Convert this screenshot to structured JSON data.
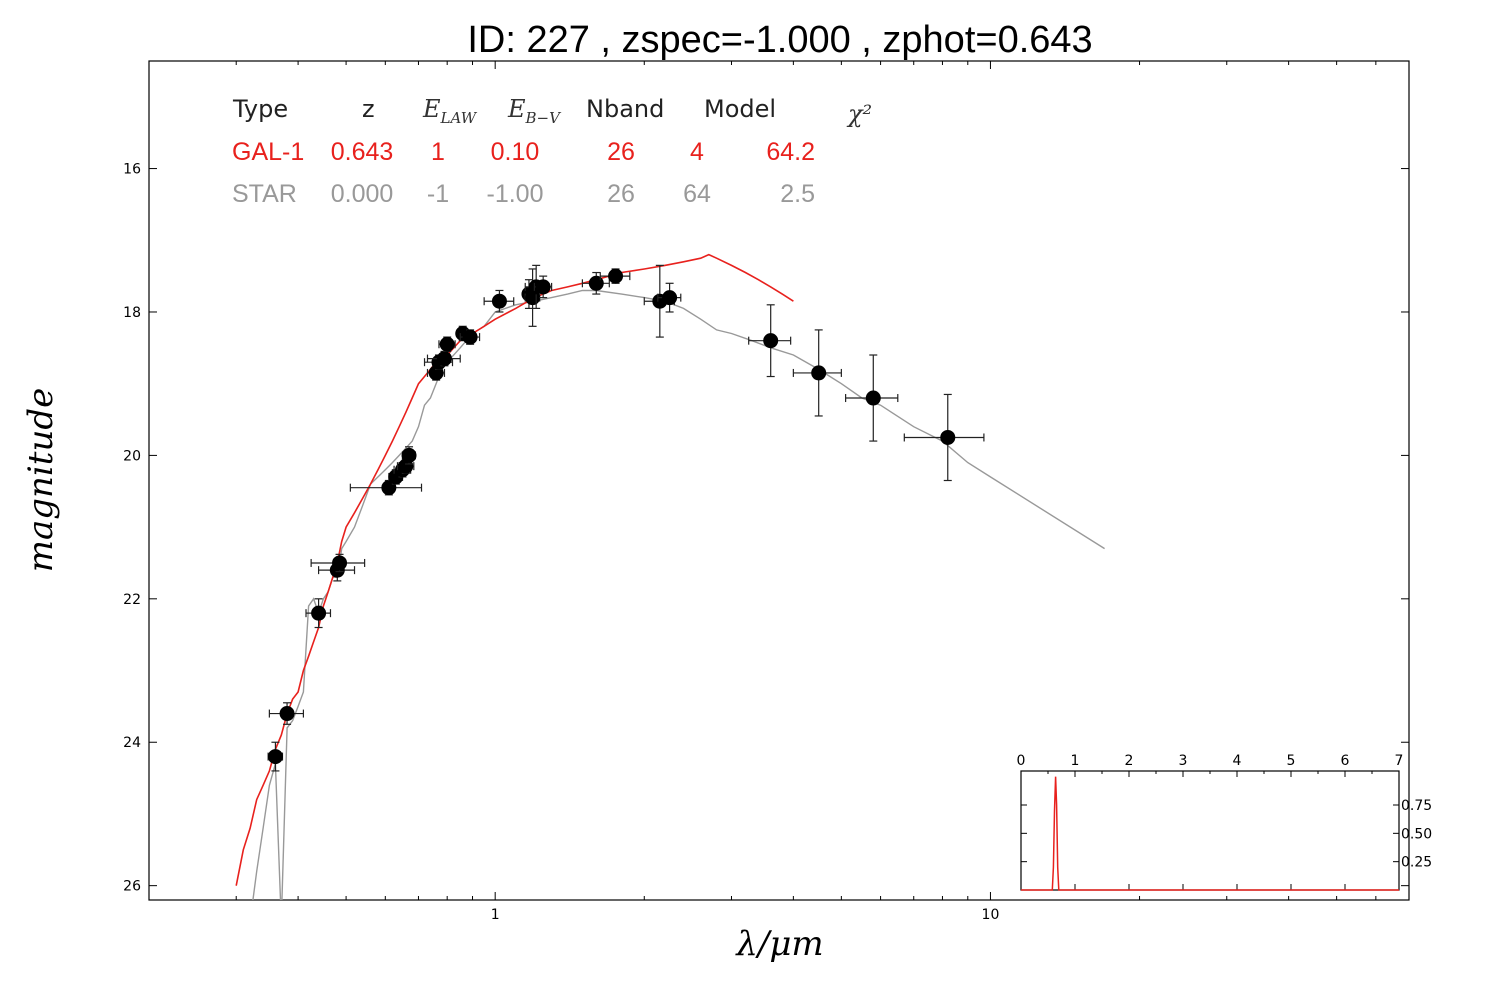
{
  "chart_data": {
    "type": "scatter",
    "title": "ID:  227   , zspec=-1.000 , zphot=0.643",
    "xlabel": "λ/μm",
    "ylabel": "magnitude",
    "xscale": "log",
    "xlim": [
      0.2,
      70
    ],
    "ylim": [
      26.2,
      14.5
    ],
    "x_ticks": [
      {
        "value": 1,
        "label": "1"
      },
      {
        "value": 10,
        "label": "10"
      }
    ],
    "y_ticks": [
      16,
      18,
      20,
      22,
      24,
      26
    ],
    "grid": false,
    "legend_table": {
      "header": [
        "Type",
        "z",
        "E_LAW",
        "E_B−V",
        "Nband",
        "Model",
        "χ²"
      ],
      "rows": [
        {
          "color": "#e8211d",
          "cells": [
            "GAL-1",
            "0.643",
            "1",
            "0.10",
            "26",
            "4",
            "64.2"
          ]
        },
        {
          "color": "#999999",
          "cells": [
            "STAR",
            "0.000",
            "-1",
            "-1.00",
            "26",
            "64",
            "2.5"
          ]
        }
      ]
    },
    "photometry": [
      {
        "x": 0.36,
        "y": 24.2,
        "xerr": 0.012,
        "yerr": 0.2
      },
      {
        "x": 0.38,
        "y": 23.6,
        "xerr": 0.03,
        "yerr": 0.15
      },
      {
        "x": 0.44,
        "y": 22.2,
        "xerr": 0.025,
        "yerr": 0.2
      },
      {
        "x": 0.48,
        "y": 21.6,
        "xerr": 0.04,
        "yerr": 0.15
      },
      {
        "x": 0.485,
        "y": 21.5,
        "xerr": 0.06,
        "yerr": 0.12
      },
      {
        "x": 0.61,
        "y": 20.45,
        "xerr": 0.1,
        "yerr": 0.1
      },
      {
        "x": 0.63,
        "y": 20.3,
        "xerr": 0.02,
        "yerr": 0.1
      },
      {
        "x": 0.65,
        "y": 20.2,
        "xerr": 0.025,
        "yerr": 0.1
      },
      {
        "x": 0.66,
        "y": 20.15,
        "xerr": 0.025,
        "yerr": 0.1
      },
      {
        "x": 0.67,
        "y": 20.0,
        "xerr": 0.02,
        "yerr": 0.12
      },
      {
        "x": 0.76,
        "y": 18.85,
        "xerr": 0.03,
        "yerr": 0.1
      },
      {
        "x": 0.77,
        "y": 18.7,
        "xerr": 0.05,
        "yerr": 0.1
      },
      {
        "x": 0.79,
        "y": 18.65,
        "xerr": 0.06,
        "yerr": 0.1
      },
      {
        "x": 0.8,
        "y": 18.45,
        "xerr": 0.03,
        "yerr": 0.1
      },
      {
        "x": 0.86,
        "y": 18.3,
        "xerr": 0.02,
        "yerr": 0.1
      },
      {
        "x": 0.89,
        "y": 18.35,
        "xerr": 0.04,
        "yerr": 0.1
      },
      {
        "x": 1.02,
        "y": 17.85,
        "xerr": 0.07,
        "yerr": 0.15
      },
      {
        "x": 1.17,
        "y": 17.75,
        "xerr": 0.03,
        "yerr": 0.2
      },
      {
        "x": 1.19,
        "y": 17.8,
        "xerr": 0.04,
        "yerr": 0.4
      },
      {
        "x": 1.21,
        "y": 17.65,
        "xerr": 0.06,
        "yerr": 0.3
      },
      {
        "x": 1.25,
        "y": 17.65,
        "xerr": 0.05,
        "yerr": 0.15
      },
      {
        "x": 1.6,
        "y": 17.6,
        "xerr": 0.1,
        "yerr": 0.15
      },
      {
        "x": 1.75,
        "y": 17.5,
        "xerr": 0.12,
        "yerr": 0.1
      },
      {
        "x": 2.15,
        "y": 17.85,
        "xerr": 0.15,
        "yerr": 0.5
      },
      {
        "x": 2.25,
        "y": 17.8,
        "xerr": 0.12,
        "yerr": 0.2
      },
      {
        "x": 3.6,
        "y": 18.4,
        "xerr": 0.35,
        "yerr": 0.5
      },
      {
        "x": 4.5,
        "y": 18.85,
        "xerr": 0.5,
        "yerr": 0.6
      },
      {
        "x": 5.8,
        "y": 19.2,
        "xerr": 0.7,
        "yerr": 0.6
      },
      {
        "x": 8.2,
        "y": 19.75,
        "xerr": 1.5,
        "yerr": 0.6
      }
    ],
    "galaxy_model": {
      "color": "#e8211d",
      "x": [
        0.3,
        0.31,
        0.32,
        0.33,
        0.34,
        0.35,
        0.36,
        0.37,
        0.38,
        0.39,
        0.4,
        0.41,
        0.42,
        0.43,
        0.44,
        0.45,
        0.46,
        0.47,
        0.48,
        0.49,
        0.5,
        0.52,
        0.54,
        0.56,
        0.58,
        0.6,
        0.62,
        0.64,
        0.66,
        0.68,
        0.7,
        0.72,
        0.74,
        0.76,
        0.78,
        0.8,
        0.85,
        0.9,
        0.95,
        1.0,
        1.1,
        1.2,
        1.3,
        1.4,
        1.5,
        1.6,
        1.8,
        2.0,
        2.2,
        2.4,
        2.6,
        2.7,
        2.8,
        3.0,
        3.2,
        3.4,
        3.6,
        3.8,
        4.0
      ],
      "y": [
        26.0,
        25.5,
        25.2,
        24.8,
        24.6,
        24.4,
        24.1,
        23.9,
        23.6,
        23.4,
        23.3,
        23.0,
        22.8,
        22.6,
        22.4,
        22.1,
        21.9,
        21.7,
        21.5,
        21.2,
        21.0,
        20.8,
        20.6,
        20.4,
        20.2,
        20.0,
        19.8,
        19.6,
        19.4,
        19.2,
        19.0,
        18.9,
        18.8,
        18.7,
        18.65,
        18.6,
        18.4,
        18.3,
        18.2,
        18.1,
        17.95,
        17.8,
        17.7,
        17.65,
        17.6,
        17.55,
        17.45,
        17.4,
        17.35,
        17.3,
        17.25,
        17.2,
        17.25,
        17.35,
        17.45,
        17.55,
        17.65,
        17.75,
        17.85
      ]
    },
    "star_model": {
      "color": "#999999",
      "x": [
        0.32,
        0.33,
        0.34,
        0.35,
        0.36,
        0.37,
        0.38,
        0.39,
        0.4,
        0.41,
        0.42,
        0.43,
        0.44,
        0.45,
        0.46,
        0.47,
        0.48,
        0.49,
        0.5,
        0.52,
        0.54,
        0.56,
        0.58,
        0.6,
        0.62,
        0.64,
        0.66,
        0.68,
        0.7,
        0.72,
        0.74,
        0.76,
        0.78,
        0.8,
        0.85,
        0.9,
        0.95,
        1.0,
        1.1,
        1.2,
        1.3,
        1.4,
        1.5,
        1.6,
        1.8,
        2.0,
        2.2,
        2.4,
        2.6,
        2.8,
        3.0,
        3.3,
        3.6,
        4.0,
        4.5,
        5.0,
        5.5,
        6.0,
        7.0,
        8.0,
        9.0,
        10.0,
        17.0
      ],
      "y": [
        26.5,
        25.8,
        25.2,
        24.6,
        24.3,
        26.5,
        23.8,
        23.7,
        23.5,
        23.3,
        22.1,
        22.0,
        22.2,
        22.0,
        21.9,
        21.7,
        21.7,
        21.3,
        21.2,
        21.0,
        20.7,
        20.4,
        20.3,
        20.2,
        20.1,
        20.0,
        19.9,
        19.8,
        19.6,
        19.3,
        19.2,
        19.0,
        18.8,
        18.7,
        18.5,
        18.3,
        18.2,
        18.0,
        17.9,
        17.85,
        17.8,
        17.75,
        17.7,
        17.7,
        17.75,
        17.8,
        17.85,
        17.95,
        18.1,
        18.25,
        18.3,
        18.4,
        18.5,
        18.6,
        18.8,
        19.0,
        19.2,
        19.3,
        19.6,
        19.8,
        20.1,
        20.3,
        21.3
      ]
    },
    "inset": {
      "type": "line",
      "xlim": [
        0,
        7
      ],
      "ylim": [
        0,
        1.05
      ],
      "x_ticks": [
        "0",
        "1",
        "2",
        "3",
        "4",
        "5",
        "6",
        "7"
      ],
      "y_ticks": [
        {
          "value": 0.25,
          "label": "0.25"
        },
        {
          "value": 0.5,
          "label": "0.50"
        },
        {
          "value": 0.75,
          "label": "0.75"
        }
      ],
      "color": "#e8211d",
      "x": [
        0.0,
        0.58,
        0.6,
        0.62,
        0.64,
        0.66,
        0.68,
        0.7,
        7.0
      ],
      "y": [
        0.0,
        0.0,
        0.2,
        0.7,
        1.0,
        0.75,
        0.2,
        0.0,
        0.0
      ]
    }
  }
}
